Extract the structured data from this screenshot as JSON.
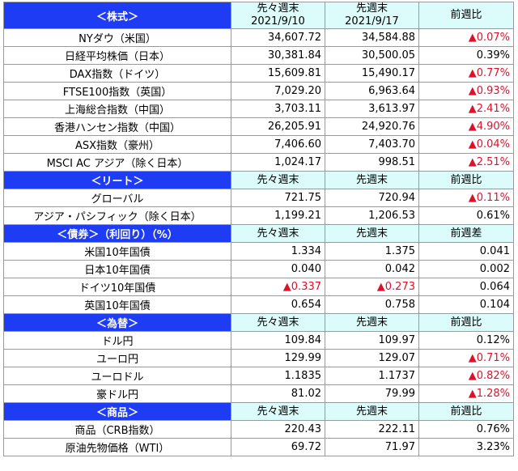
{
  "sections": [
    {
      "title": "＜株式＞",
      "headers": [
        [
          "先々週末",
          "2021/9/10"
        ],
        [
          "先週末",
          "2021/9/17"
        ],
        [
          "前週比"
        ]
      ],
      "rows": [
        [
          "NYダウ（米国）",
          "34,607.72",
          "34,584.88",
          "▲0.07%"
        ],
        [
          "日経平均株価（日本）",
          "30,381.84",
          "30,500.05",
          "0.39%"
        ],
        [
          "DAX指数（ドイツ）",
          "15,609.81",
          "15,490.17",
          "▲0.77%"
        ],
        [
          "FTSE100指数（英国）",
          "7,029.20",
          "6,963.64",
          "▲0.93%"
        ],
        [
          "上海総合指数（中国）",
          "3,703.11",
          "3,613.97",
          "▲2.41%"
        ],
        [
          "香港ハンセン指数（中国）",
          "26,205.91",
          "24,920.76",
          "▲4.90%"
        ],
        [
          "ASX指数（豪州）",
          "7,406.60",
          "7,403.70",
          "▲0.04%"
        ],
        [
          "MSCI AC アジア（除く日本）",
          "1,024.17",
          "998.51",
          "▲2.51%"
        ]
      ]
    },
    {
      "title": "＜リート＞",
      "headers": [
        [
          "先々週末"
        ],
        [
          "先週末"
        ],
        [
          "前週比"
        ]
      ],
      "rows": [
        [
          "グローバル",
          "721.75",
          "720.94",
          "▲0.11%"
        ],
        [
          "アジア・パシフィック（除く日本）",
          "1,199.21",
          "1,206.53",
          "0.61%"
        ]
      ]
    },
    {
      "title": "＜債券＞（利回り）（%）",
      "headers": [
        [
          "先々週末"
        ],
        [
          "先週末"
        ],
        [
          "前週差"
        ]
      ],
      "rows": [
        [
          "米国10年国債",
          "1.334",
          "1.375",
          "0.041"
        ],
        [
          "日本10年国債",
          "0.040",
          "0.042",
          "0.002"
        ],
        [
          "ドイツ10年国債",
          "▲0.337",
          "▲0.273",
          "0.064"
        ],
        [
          "英国10年国債",
          "0.654",
          "0.758",
          "0.104"
        ]
      ]
    },
    {
      "title": "＜為替＞",
      "headers": [
        [
          "先々週末"
        ],
        [
          "先週末"
        ],
        [
          "前週比"
        ]
      ],
      "rows": [
        [
          "ドル円",
          "109.84",
          "109.97",
          "0.12%"
        ],
        [
          "ユーロ円",
          "129.99",
          "129.07",
          "▲0.71%"
        ],
        [
          "ユーロドル",
          "1.1835",
          "1.1737",
          "▲0.82%"
        ],
        [
          "豪ドル円",
          "81.02",
          "79.99",
          "▲1.28%"
        ]
      ]
    },
    {
      "title": "＜商品＞",
      "headers": [
        [
          "先々週末"
        ],
        [
          "先週末"
        ],
        [
          "前週比"
        ]
      ],
      "rows": [
        [
          "商品（CRB指数）",
          "220.43",
          "222.11",
          "0.76%"
        ],
        [
          "原油先物価格（WTI）",
          "69.72",
          "71.97",
          "3.23%"
        ]
      ]
    }
  ]
}
